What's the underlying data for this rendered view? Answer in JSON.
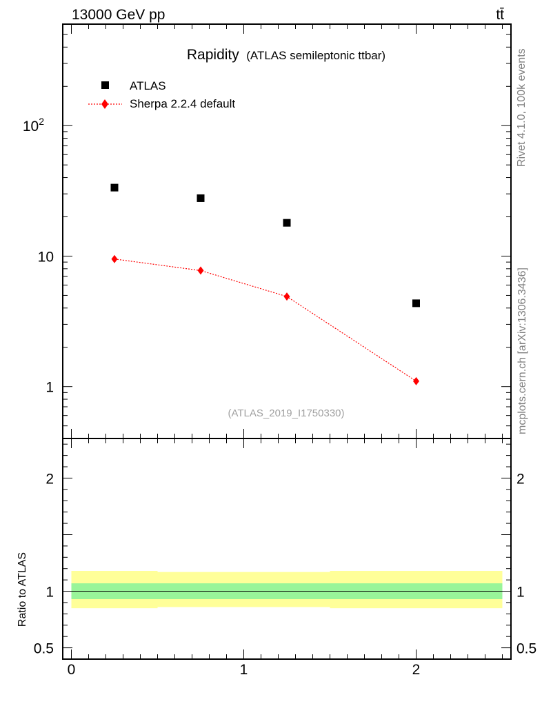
{
  "header": {
    "energy": "13000 GeV pp",
    "process": "tt̄"
  },
  "side_labels": {
    "rivet": "Rivet 4.1.0,  100k events",
    "mcplots": "mcplots.cern.ch [arXiv:1306.3436]"
  },
  "reference": "(ATLAS_2019_I1750330)",
  "chart_data": {
    "type": "scatter",
    "title": "Rapidity",
    "subtitle": "(ATLAS semileptonic ttbar)",
    "xlabel": "",
    "ylabel": "",
    "yscale": "log",
    "ylim": [
      0.4,
      600
    ],
    "xlim": [
      -0.05,
      2.55
    ],
    "x": [
      0.25,
      0.75,
      1.25,
      2.0
    ],
    "series": [
      {
        "name": "ATLAS",
        "marker": "square",
        "color": "#000000",
        "values": [
          33.5,
          27.8,
          18.0,
          4.35
        ]
      },
      {
        "name": "Sherpa 2.2.4 default",
        "marker": "diamond",
        "line": "dotted",
        "color": "#ff0000",
        "values": [
          9.5,
          7.75,
          4.9,
          1.1
        ]
      }
    ],
    "yticks": [
      {
        "v": 1,
        "label": "1"
      },
      {
        "v": 10,
        "label": "10"
      },
      {
        "v": 100,
        "label": "10",
        "sup": "2"
      }
    ],
    "ratio": {
      "ylabel": "Ratio to ATLAS",
      "ylim": [
        0.4,
        2.35
      ],
      "ticks": [
        {
          "v": 0.5,
          "label": "0.5"
        },
        {
          "v": 1,
          "label": "1"
        },
        {
          "v": 2,
          "label": "2"
        }
      ],
      "bands": [
        {
          "x0": 0,
          "x1": 0.5,
          "lo": 0.93,
          "hi": 1.07,
          "lo2": 0.85,
          "hi2": 1.18
        },
        {
          "x0": 0.5,
          "x1": 1.0,
          "lo": 0.93,
          "hi": 1.07,
          "lo2": 0.86,
          "hi2": 1.17
        },
        {
          "x0": 1.0,
          "x1": 1.5,
          "lo": 0.93,
          "hi": 1.07,
          "lo2": 0.86,
          "hi2": 1.17
        },
        {
          "x0": 1.5,
          "x1": 2.5,
          "lo": 0.93,
          "hi": 1.07,
          "lo2": 0.85,
          "hi2": 1.18
        }
      ],
      "band_colors": {
        "inner": "#99f599",
        "outer": "#ffff99"
      }
    },
    "xticks": [
      {
        "v": 0,
        "label": "0"
      },
      {
        "v": 1,
        "label": "1"
      },
      {
        "v": 2,
        "label": "2"
      }
    ]
  }
}
